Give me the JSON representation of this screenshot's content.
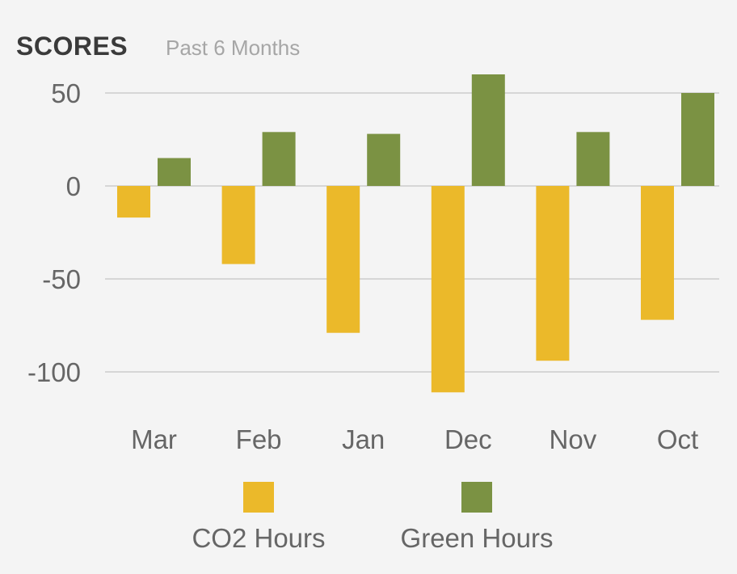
{
  "chart_data": {
    "type": "bar",
    "title": "SCORES",
    "subtitle": "Past 6 Months",
    "categories": [
      "Mar",
      "Feb",
      "Jan",
      "Dec",
      "Nov",
      "Oct"
    ],
    "series": [
      {
        "name": "CO2 Hours",
        "color": "#EBB92A",
        "values": [
          -17,
          -42,
          -79,
          -111,
          -94,
          -72
        ]
      },
      {
        "name": "Green Hours",
        "color": "#7B9243",
        "values": [
          15,
          29,
          28,
          60,
          29,
          50
        ]
      }
    ],
    "yticks": [
      50,
      0,
      -50,
      -100
    ],
    "ylim": [
      -111,
      60
    ],
    "grid": true,
    "legend_position": "bottom"
  }
}
